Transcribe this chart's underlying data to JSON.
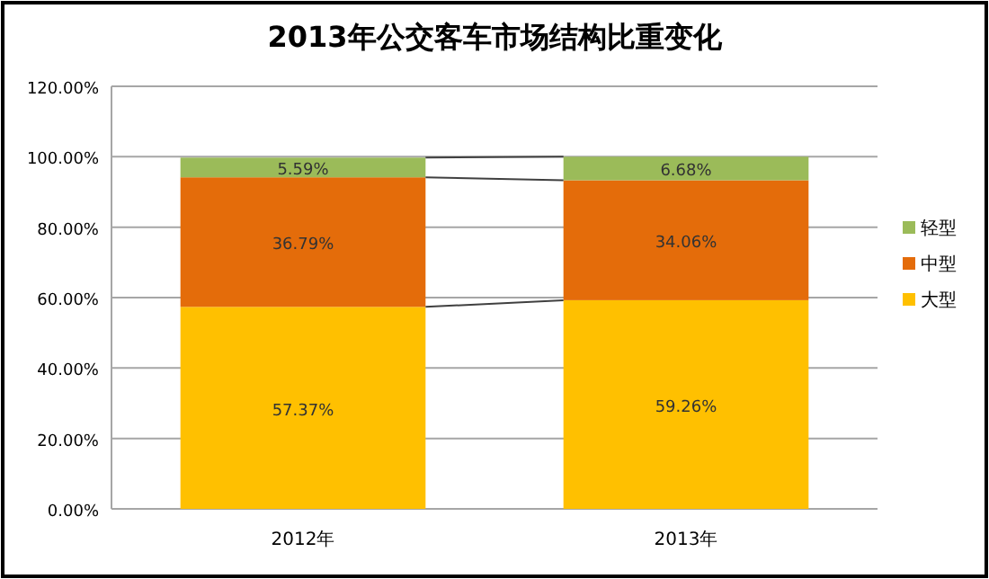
{
  "chart_data": {
    "type": "bar",
    "title": "2013年公交客车市场结构比重变化",
    "stacked": true,
    "categories": [
      "2012年",
      "2013年"
    ],
    "series": [
      {
        "name": "大型",
        "color": "#ffc000",
        "values": [
          57.37,
          59.26
        ],
        "value_labels": [
          "57.37%",
          "59.26%"
        ]
      },
      {
        "name": "中型",
        "color": "#e46c0a",
        "values": [
          36.79,
          34.06
        ],
        "value_labels": [
          "36.79%",
          "34.06%"
        ]
      },
      {
        "name": "轻型",
        "color": "#9bbb59",
        "values": [
          5.59,
          6.68
        ],
        "value_labels": [
          "5.59%",
          "6.68%"
        ]
      }
    ],
    "ylim": [
      0,
      120
    ],
    "yticks": [
      {
        "value": 0,
        "label": "0.00%"
      },
      {
        "value": 20,
        "label": "20.00%"
      },
      {
        "value": 40,
        "label": "40.00%"
      },
      {
        "value": 60,
        "label": "60.00%"
      },
      {
        "value": 80,
        "label": "80.00%"
      },
      {
        "value": 100,
        "label": "100.00%"
      },
      {
        "value": 120,
        "label": "120.00%"
      }
    ],
    "grid": "y",
    "legend": "right"
  }
}
